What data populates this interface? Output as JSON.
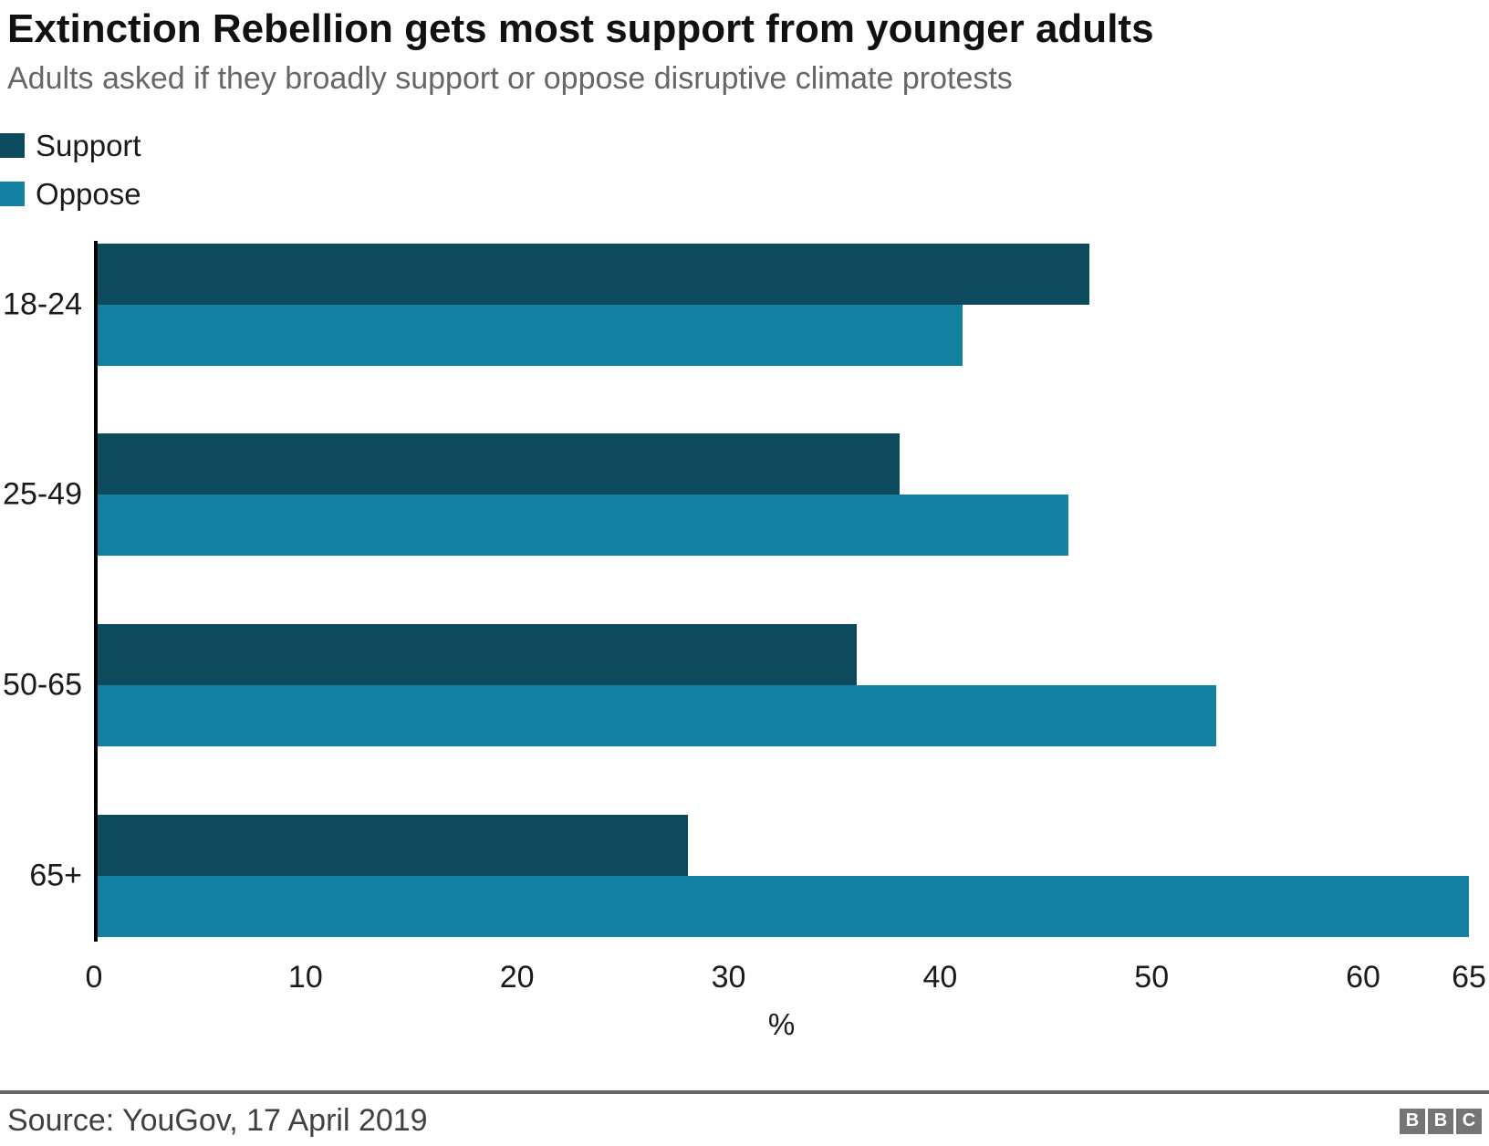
{
  "header": {
    "title": "Extinction Rebellion gets most support from younger adults",
    "subtitle": "Adults asked if they broadly support or oppose disruptive climate protests"
  },
  "legend": [
    {
      "label": "Support",
      "color": "#0d4a5e"
    },
    {
      "label": "Oppose",
      "color": "#1581a2"
    }
  ],
  "chart_data": {
    "type": "bar",
    "orientation": "horizontal",
    "title": "Extinction Rebellion gets most support from younger adults",
    "subtitle": "Adults asked if they broadly support or oppose disruptive climate protests",
    "categories": [
      "18-24",
      "25-49",
      "50-65",
      "65+"
    ],
    "series": [
      {
        "name": "Support",
        "color": "#0d4a5e",
        "values": [
          47,
          38,
          36,
          28
        ]
      },
      {
        "name": "Oppose",
        "color": "#1581a2",
        "values": [
          41,
          46,
          53,
          65
        ]
      }
    ],
    "xlabel": "%",
    "ylabel": "",
    "xlim": [
      0,
      65
    ],
    "xticks": [
      0,
      10,
      20,
      30,
      40,
      50,
      60,
      65
    ],
    "grid": false,
    "legend_position": "top-left"
  },
  "footer": {
    "source": "Source: YouGov, 17 April 2019",
    "logo_letters": [
      "B",
      "B",
      "C"
    ]
  },
  "colors": {
    "support": "#0d4a5e",
    "oppose": "#1581a2",
    "title_text": "#111111",
    "subtitle_text": "#666666",
    "axis_line": "#000000",
    "divider": "#666666",
    "source_text": "#404040",
    "bbc_gray": "#757575"
  }
}
